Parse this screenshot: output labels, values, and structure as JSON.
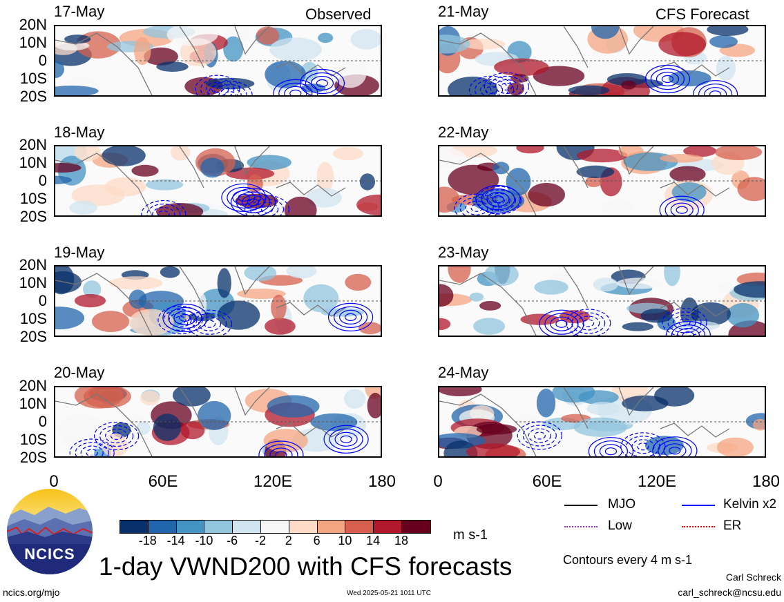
{
  "header": {
    "left_label": "Observed",
    "right_label": "CFS Forecast"
  },
  "panels_left": [
    {
      "date": "17-May"
    },
    {
      "date": "18-May"
    },
    {
      "date": "19-May"
    },
    {
      "date": "20-May"
    }
  ],
  "panels_right": [
    {
      "date": "21-May"
    },
    {
      "date": "22-May"
    },
    {
      "date": "23-May"
    },
    {
      "date": "24-May"
    }
  ],
  "lat_ticks": [
    "20N",
    "10N",
    "0",
    "10S",
    "20S"
  ],
  "lon_ticks": [
    "0",
    "60E",
    "120E",
    "180"
  ],
  "colorbar": {
    "ticks": [
      "-18",
      "-14",
      "-10",
      "-6",
      "-2",
      "2",
      "6",
      "10",
      "14",
      "18"
    ],
    "colors": [
      "#08306b",
      "#2166ac",
      "#4393c3",
      "#92c5de",
      "#d1e5f0",
      "#f7f7f7",
      "#fddbc7",
      "#f4a582",
      "#d6604d",
      "#b2182b",
      "#67001f"
    ],
    "units": "m s-1"
  },
  "legend": {
    "mjo": {
      "label": "MJO",
      "color": "#000000"
    },
    "kelvin": {
      "label": "Kelvin x2",
      "color": "#0000ff"
    },
    "low": {
      "label": "Low",
      "color": "#9933cc"
    },
    "er": {
      "label": "ER",
      "color": "#ff0000"
    },
    "contours": "Contours every 4 m s-1"
  },
  "title": "1-day VWND200 with CFS forecasts",
  "footer": {
    "url": "ncics.org/mjo",
    "timestamp": "Wed 2025-05-21 1011 UTC",
    "author": "Carl Schreck",
    "email": "carl_schreck@ncsu.edu"
  },
  "logo": {
    "text": "NCICS"
  },
  "chart_data": {
    "type": "heatmap",
    "variable": "200-hPa meridional wind anomaly",
    "units": "m s-1",
    "lon_range": [
      0,
      180
    ],
    "lat_range": [
      -20,
      20
    ],
    "panels": [
      {
        "date": "17-May",
        "kind": "Observed"
      },
      {
        "date": "18-May",
        "kind": "Observed"
      },
      {
        "date": "19-May",
        "kind": "Observed"
      },
      {
        "date": "20-May",
        "kind": "Observed"
      },
      {
        "date": "21-May",
        "kind": "CFS Forecast"
      },
      {
        "date": "22-May",
        "kind": "CFS Forecast"
      },
      {
        "date": "23-May",
        "kind": "CFS Forecast"
      },
      {
        "date": "24-May",
        "kind": "CFS Forecast"
      }
    ],
    "color_levels": [
      -18,
      -14,
      -10,
      -6,
      -2,
      2,
      6,
      10,
      14,
      18
    ],
    "contour_interval": 4
  }
}
